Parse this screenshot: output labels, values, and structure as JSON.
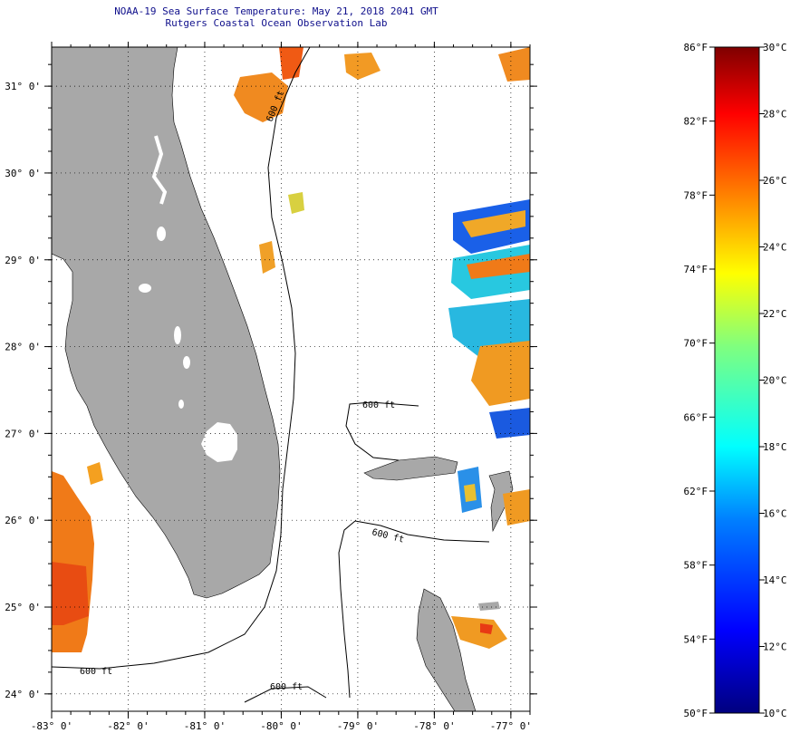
{
  "header": {
    "title_line1": "NOAA-19 Sea Surface Temperature:  May 21, 2018 2041 GMT",
    "title_line2": "Rutgers Coastal Ocean Observation Lab"
  },
  "map": {
    "lon_range": [
      -83,
      -76.75
    ],
    "lat_range": [
      23.8,
      31.45
    ],
    "lon_ticks": [
      {
        "value": -83,
        "label": "-83° 0'"
      },
      {
        "value": -82,
        "label": "-82° 0'"
      },
      {
        "value": -81,
        "label": "-81° 0'"
      },
      {
        "value": -80,
        "label": "-80° 0'"
      },
      {
        "value": -79,
        "label": "-79° 0'"
      },
      {
        "value": -78,
        "label": "-78° 0'"
      },
      {
        "value": -77,
        "label": "-77° 0'"
      }
    ],
    "lat_ticks": [
      {
        "value": 31,
        "label": "31° 0'"
      },
      {
        "value": 30,
        "label": "30° 0'"
      },
      {
        "value": 29,
        "label": "29° 0'"
      },
      {
        "value": 28,
        "label": "28° 0'"
      },
      {
        "value": 27,
        "label": "27° 0'"
      },
      {
        "value": 26,
        "label": "26° 0'"
      },
      {
        "value": 25,
        "label": "25° 0'"
      },
      {
        "value": 24,
        "label": "24° 0'"
      }
    ],
    "isobath_labels": [
      "600 ft",
      "600 ft",
      "600 ft",
      "600 ft",
      "600 ft"
    ],
    "land_color": "#a8a8a8"
  },
  "colorbar": {
    "min_c": 10,
    "max_c": 30,
    "min_f": 50,
    "max_f": 86,
    "fahrenheit_labels": [
      "86°F",
      "82°F",
      "78°F",
      "74°F",
      "70°F",
      "66°F",
      "62°F",
      "58°F",
      "54°F",
      "50°F"
    ],
    "celsius_labels": [
      "30°C",
      "28°C",
      "26°C",
      "24°C",
      "22°C",
      "20°C",
      "18°C",
      "16°C",
      "14°C",
      "12°C",
      "10°C"
    ],
    "colors": [
      "#00007f",
      "#0000ff",
      "#007fff",
      "#00ffff",
      "#7fff7f",
      "#ffff00",
      "#ff7f00",
      "#ff0000",
      "#7f0000"
    ]
  }
}
